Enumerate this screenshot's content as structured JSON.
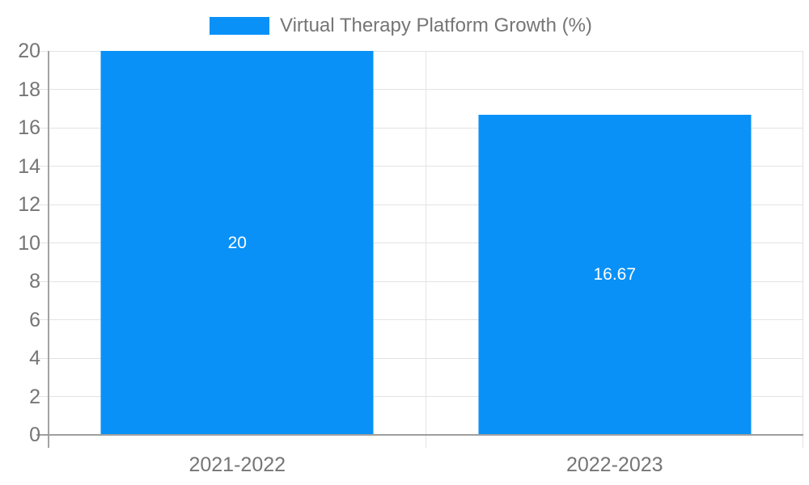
{
  "chart_data": {
    "type": "bar",
    "title": "",
    "categories": [
      "2021-2022",
      "2022-2023"
    ],
    "series": [
      {
        "name": "Virtual Therapy Platform Growth (%)",
        "values": [
          20,
          16.67
        ],
        "value_labels": [
          "20",
          "16.67"
        ],
        "color": "#0991f7"
      }
    ],
    "ylim": [
      0,
      20
    ],
    "yticks": [
      0,
      2,
      4,
      6,
      8,
      10,
      12,
      14,
      16,
      18,
      20
    ],
    "grid": true,
    "legend_position": "top",
    "xlabel": "",
    "ylabel": ""
  },
  "colors": {
    "bar": "#0991f7",
    "axis_text": "#757575",
    "bar_label_text": "#ffffff",
    "gridline": "#e3e3e3",
    "x_axis_line": "#9e9e9e",
    "y_axis_line": "#a3a3a3",
    "background": "#ffffff"
  }
}
